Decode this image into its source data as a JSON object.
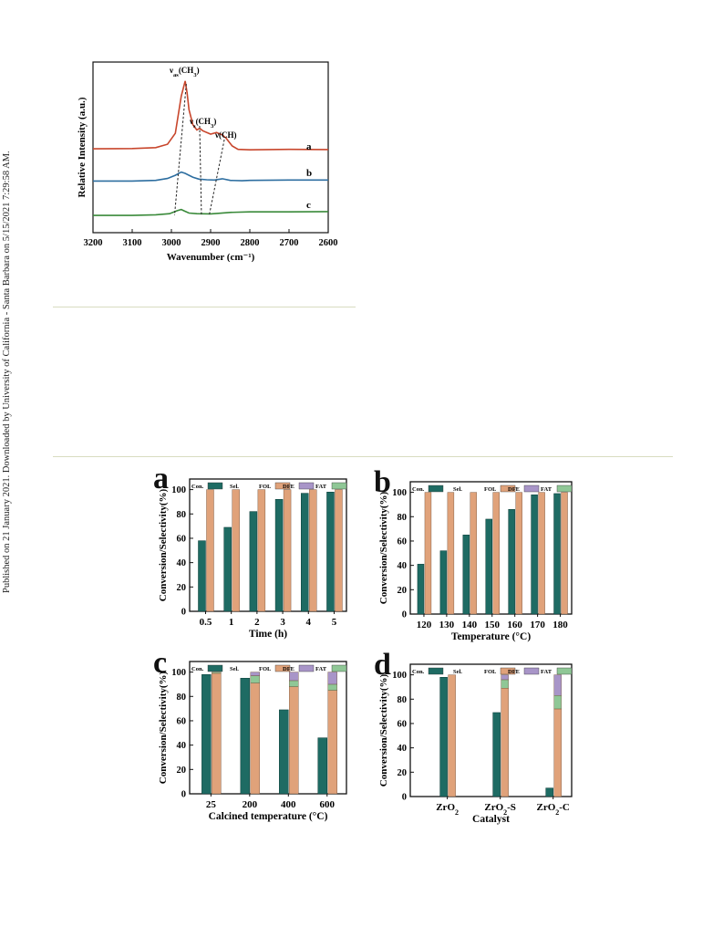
{
  "page": {
    "side_note": "Published on 21 January 2021. Downloaded by University of California - Santa Barbara on 5/15/2021 7:29:58 AM."
  },
  "chart_data": [
    {
      "type": "line",
      "panel": "ir",
      "xlabel": "Wavenumber (cm⁻¹)",
      "ylabel": "Relative Intensity (a.u.)",
      "xlim": [
        3200,
        2600
      ],
      "x_reversed": true,
      "xticks": [
        "3200",
        "3100",
        "3000",
        "2900",
        "2800",
        "2700",
        "2600"
      ],
      "series": [
        {
          "name": "a",
          "color": "#c8462c",
          "x": [
            3200,
            3100,
            3040,
            3010,
            2990,
            2975,
            2965,
            2960,
            2955,
            2945,
            2935,
            2928,
            2920,
            2900,
            2885,
            2870,
            2860,
            2845,
            2830,
            2800,
            2700,
            2600
          ],
          "y": [
            0.48,
            0.5,
            0.55,
            0.75,
            1.4,
            3.6,
            4.5,
            3.8,
            2.8,
            1.9,
            1.6,
            1.7,
            1.55,
            1.35,
            1.45,
            1.3,
            1.1,
            0.65,
            0.45,
            0.42,
            0.45,
            0.44
          ]
        },
        {
          "name": "b",
          "color": "#2d6ea0",
          "x": [
            3200,
            3100,
            3040,
            3010,
            2990,
            2975,
            2965,
            2955,
            2945,
            2930,
            2910,
            2890,
            2870,
            2850,
            2820,
            2800,
            2700,
            2600
          ],
          "y": [
            0.4,
            0.4,
            0.45,
            0.6,
            0.85,
            1.1,
            1.0,
            0.85,
            0.7,
            0.55,
            0.5,
            0.48,
            0.58,
            0.45,
            0.42,
            0.45,
            0.48,
            0.48
          ]
        },
        {
          "name": "c",
          "color": "#3a8a3a",
          "x": [
            3200,
            3100,
            3040,
            3005,
            2985,
            2975,
            2965,
            2955,
            2935,
            2900,
            2880,
            2850,
            2800,
            2700,
            2600
          ],
          "y": [
            0.3,
            0.3,
            0.35,
            0.45,
            0.7,
            0.8,
            0.65,
            0.5,
            0.45,
            0.43,
            0.48,
            0.55,
            0.6,
            0.6,
            0.62
          ]
        }
      ],
      "annotations": [
        {
          "label": "νas(CH3)",
          "sub_a": "as",
          "sub_b": "3",
          "base": "ν",
          "mid": "(CH",
          "end": ")",
          "x_top": 2962,
          "x_bottom": 2978
        },
        {
          "label": "νs(CH3)",
          "sub_a": "s",
          "sub_b": "3",
          "base": "ν",
          "mid": "(CH",
          "end": ")",
          "x_top": 2928,
          "x_bottom": 2928
        },
        {
          "label": "ν(CH)",
          "sub_a": "",
          "sub_b": "",
          "base": "ν",
          "mid": "(CH",
          "end": ")",
          "x_top": 2865,
          "x_bottom": 2885
        }
      ]
    },
    {
      "type": "bar",
      "panel": "a",
      "xlabel": "Time (h)",
      "ylabel": "Conversion/Selectivity(%)",
      "ylim": [
        0,
        100
      ],
      "yticks": [
        0,
        20,
        40,
        60,
        80,
        100
      ],
      "categories": [
        "0.5",
        "1",
        "2",
        "3",
        "4",
        "5"
      ],
      "legend": [
        "Con.",
        "Sel.",
        "FOL",
        "DFE",
        "FAT"
      ],
      "series": [
        {
          "name": "Con.",
          "values": [
            58,
            69,
            82,
            92,
            97,
            98
          ]
        },
        {
          "name": "FOL",
          "values": [
            100,
            100,
            100,
            100,
            100,
            100
          ]
        },
        {
          "name": "DFE",
          "values": [
            0,
            0,
            0,
            0,
            0,
            0
          ]
        },
        {
          "name": "FAT",
          "values": [
            0,
            0,
            0,
            0,
            0,
            0
          ]
        }
      ]
    },
    {
      "type": "bar",
      "panel": "b",
      "xlabel": "Temperature (°C)",
      "ylabel": "Conversion/Selectivity(%)",
      "ylim": [
        0,
        100
      ],
      "yticks": [
        0,
        20,
        40,
        60,
        80,
        100
      ],
      "categories": [
        "120",
        "130",
        "140",
        "150",
        "160",
        "170",
        "180"
      ],
      "legend": [
        "Con.",
        "Sel.",
        "FOL",
        "DFE",
        "FAT"
      ],
      "series": [
        {
          "name": "Con.",
          "values": [
            41,
            52,
            65,
            78,
            86,
            98,
            99
          ]
        },
        {
          "name": "FOL",
          "values": [
            100,
            100,
            100,
            100,
            100,
            100,
            100
          ]
        },
        {
          "name": "DFE",
          "values": [
            0,
            0,
            0,
            0,
            0,
            0,
            0
          ]
        },
        {
          "name": "FAT",
          "values": [
            0,
            0,
            0,
            0,
            0,
            0,
            0
          ]
        }
      ]
    },
    {
      "type": "bar",
      "panel": "c",
      "xlabel": "Calcined temperature (°C)",
      "ylabel": "Conversion/Selectivity(%)",
      "ylim": [
        0,
        100
      ],
      "yticks": [
        0,
        20,
        40,
        60,
        80,
        100
      ],
      "categories": [
        "25",
        "200",
        "400",
        "600"
      ],
      "legend": [
        "Con.",
        "Sel.",
        "FOL",
        "DFE",
        "FAT"
      ],
      "series": [
        {
          "name": "Con.",
          "values": [
            98,
            95,
            69,
            46
          ]
        },
        {
          "name": "FOL",
          "values": [
            99,
            91,
            88,
            85
          ]
        },
        {
          "name": "DFE",
          "values": [
            0,
            3,
            7,
            10
          ]
        },
        {
          "name": "FAT",
          "values": [
            1,
            6,
            5,
            5
          ]
        }
      ]
    },
    {
      "type": "bar",
      "panel": "d",
      "xlabel": "Catalyst",
      "ylabel": "Conversion/Selectivity(%)",
      "ylim": [
        0,
        100
      ],
      "yticks": [
        0,
        20,
        40,
        60,
        80,
        100
      ],
      "categories": [
        "ZrO2",
        "ZrO2-S",
        "ZrO2-C"
      ],
      "category_parts": [
        [
          "ZrO",
          "2",
          ""
        ],
        [
          "ZrO",
          "2",
          "-S"
        ],
        [
          "ZrO",
          "2",
          "-C"
        ]
      ],
      "legend": [
        "Con.",
        "Sel.",
        "FOL",
        "DFE",
        "FAT"
      ],
      "series": [
        {
          "name": "Con.",
          "values": [
            98,
            69,
            7
          ]
        },
        {
          "name": "FOL",
          "values": [
            100,
            89,
            72
          ]
        },
        {
          "name": "DFE",
          "values": [
            0,
            4,
            17
          ]
        },
        {
          "name": "FAT",
          "values": [
            0,
            7,
            11
          ]
        }
      ]
    }
  ],
  "colors": {
    "con": "#1e6b63",
    "fol": "#e0a27a",
    "dfe": "#a895c8",
    "fat": "#8fc796"
  }
}
